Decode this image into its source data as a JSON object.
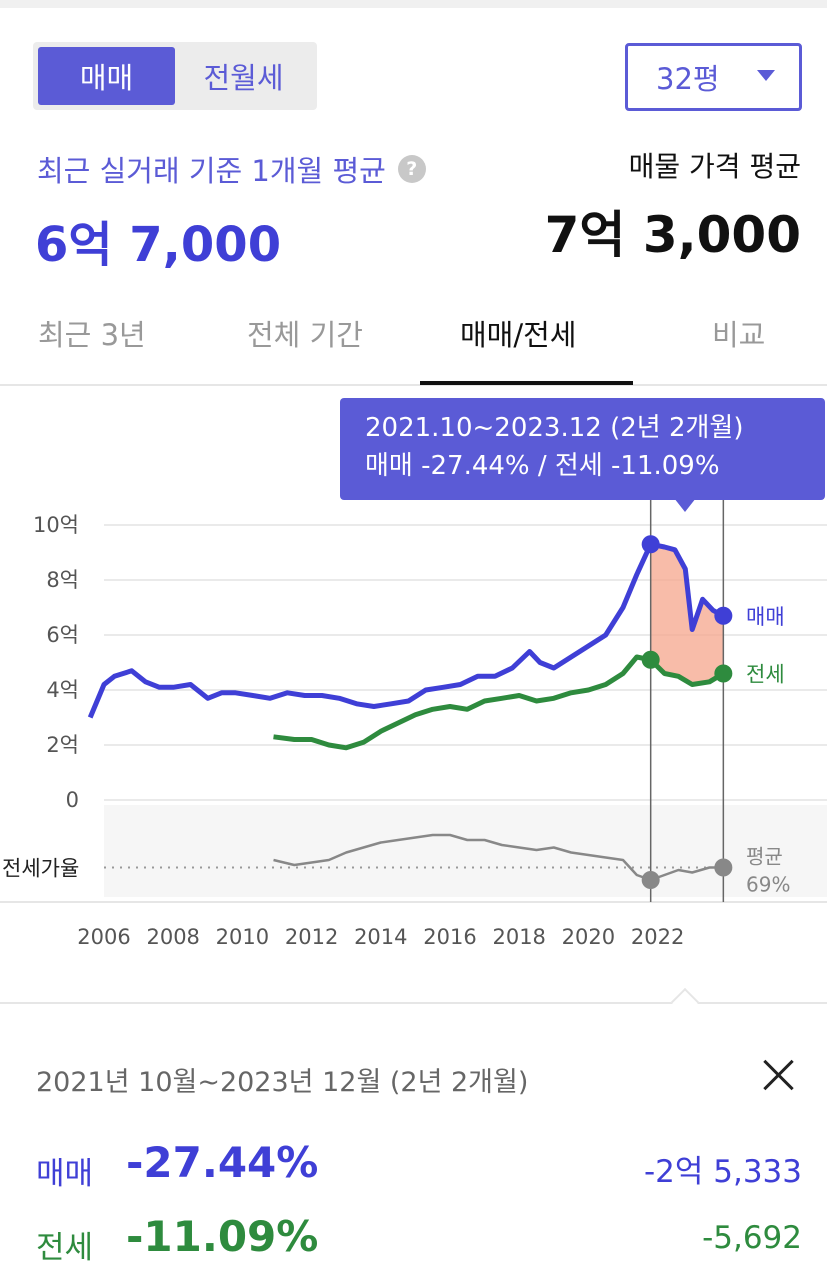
{
  "top_toggle": {
    "options": [
      "매매",
      "전월세"
    ],
    "selected": "매매"
  },
  "size_select": {
    "value": "32평"
  },
  "recent_avg": {
    "label": "최근 실거래 기준 1개월 평균",
    "help_icon": "question-circle-icon",
    "value": "6억 7,000"
  },
  "listing_avg": {
    "label": "매물 가격 평균",
    "value": "7억 3,000"
  },
  "tabs": {
    "items": [
      "최근 3년",
      "전체 기간",
      "매매/전세",
      "비교"
    ],
    "active": "매매/전세"
  },
  "tooltip": {
    "period": "2021.10~2023.12 (2년 2개월)",
    "summary": "매매 -27.44%  /  전세 -11.09%"
  },
  "chart_data": {
    "type": "line",
    "x_ticks": [
      "2006",
      "2008",
      "2010",
      "2012",
      "2014",
      "2016",
      "2018",
      "2020",
      "2022"
    ],
    "y_ticks": [
      "10억",
      "8억",
      "6억",
      "4억",
      "2억",
      "0"
    ],
    "ylim": [
      0,
      10
    ],
    "series": [
      {
        "name": "매매",
        "color": "#3f3fd6",
        "points": [
          [
            2005.6,
            3.0
          ],
          [
            2005.8,
            3.6
          ],
          [
            2006.0,
            4.2
          ],
          [
            2006.3,
            4.5
          ],
          [
            2006.8,
            4.7
          ],
          [
            2007.2,
            4.3
          ],
          [
            2007.6,
            4.1
          ],
          [
            2008.0,
            4.1
          ],
          [
            2008.5,
            4.2
          ],
          [
            2009.0,
            3.7
          ],
          [
            2009.4,
            3.9
          ],
          [
            2009.8,
            3.9
          ],
          [
            2010.3,
            3.8
          ],
          [
            2010.8,
            3.7
          ],
          [
            2011.3,
            3.9
          ],
          [
            2011.8,
            3.8
          ],
          [
            2012.3,
            3.8
          ],
          [
            2012.8,
            3.7
          ],
          [
            2013.3,
            3.5
          ],
          [
            2013.8,
            3.4
          ],
          [
            2014.3,
            3.5
          ],
          [
            2014.8,
            3.6
          ],
          [
            2015.3,
            4.0
          ],
          [
            2015.8,
            4.1
          ],
          [
            2016.3,
            4.2
          ],
          [
            2016.8,
            4.5
          ],
          [
            2017.3,
            4.5
          ],
          [
            2017.8,
            4.8
          ],
          [
            2018.3,
            5.4
          ],
          [
            2018.6,
            5.0
          ],
          [
            2019.0,
            4.8
          ],
          [
            2019.5,
            5.2
          ],
          [
            2020.0,
            5.6
          ],
          [
            2020.5,
            6.0
          ],
          [
            2021.0,
            7.0
          ],
          [
            2021.4,
            8.2
          ],
          [
            2021.8,
            9.3
          ],
          [
            2022.2,
            9.2
          ],
          [
            2022.5,
            9.1
          ],
          [
            2022.8,
            8.4
          ],
          [
            2023.0,
            6.2
          ],
          [
            2023.3,
            7.3
          ],
          [
            2023.6,
            6.9
          ],
          [
            2023.9,
            6.7
          ]
        ]
      },
      {
        "name": "전세",
        "color": "#2e8b3e",
        "points": [
          [
            2010.9,
            2.3
          ],
          [
            2011.5,
            2.2
          ],
          [
            2012.0,
            2.2
          ],
          [
            2012.5,
            2.0
          ],
          [
            2013.0,
            1.9
          ],
          [
            2013.5,
            2.1
          ],
          [
            2014.0,
            2.5
          ],
          [
            2014.5,
            2.8
          ],
          [
            2015.0,
            3.1
          ],
          [
            2015.5,
            3.3
          ],
          [
            2016.0,
            3.4
          ],
          [
            2016.5,
            3.3
          ],
          [
            2017.0,
            3.6
          ],
          [
            2017.5,
            3.7
          ],
          [
            2018.0,
            3.8
          ],
          [
            2018.5,
            3.6
          ],
          [
            2019.0,
            3.7
          ],
          [
            2019.5,
            3.9
          ],
          [
            2020.0,
            4.0
          ],
          [
            2020.5,
            4.2
          ],
          [
            2021.0,
            4.6
          ],
          [
            2021.4,
            5.2
          ],
          [
            2021.8,
            5.1
          ],
          [
            2022.2,
            4.6
          ],
          [
            2022.6,
            4.5
          ],
          [
            2023.0,
            4.2
          ],
          [
            2023.5,
            4.3
          ],
          [
            2023.9,
            4.6
          ]
        ]
      },
      {
        "name": "평균",
        "color": "#888888",
        "points": [
          [
            2010.9,
            72
          ],
          [
            2011.5,
            70
          ],
          [
            2012.0,
            71
          ],
          [
            2012.5,
            72
          ],
          [
            2013.0,
            75
          ],
          [
            2013.5,
            77
          ],
          [
            2014.0,
            79
          ],
          [
            2014.5,
            80
          ],
          [
            2015.0,
            81
          ],
          [
            2015.5,
            82
          ],
          [
            2016.0,
            82
          ],
          [
            2016.5,
            80
          ],
          [
            2017.0,
            80
          ],
          [
            2017.5,
            78
          ],
          [
            2018.0,
            77
          ],
          [
            2018.5,
            76
          ],
          [
            2019.0,
            77
          ],
          [
            2019.5,
            75
          ],
          [
            2020.0,
            74
          ],
          [
            2020.5,
            73
          ],
          [
            2021.0,
            72
          ],
          [
            2021.4,
            66
          ],
          [
            2021.8,
            64
          ],
          [
            2022.2,
            66
          ],
          [
            2022.6,
            68
          ],
          [
            2023.0,
            67
          ],
          [
            2023.5,
            69
          ],
          [
            2023.9,
            69
          ]
        ]
      }
    ],
    "ratio_label": "전세가율",
    "ratio_ylim": [
      60,
      88
    ],
    "end_labels": {
      "sale": "매매",
      "jeonse": "전세",
      "ratio": "평균",
      "ratio_value": "69%"
    },
    "selection": {
      "start": 2021.8,
      "end": 2023.9,
      "fill": "#f5a58c"
    }
  },
  "detail_panel": {
    "period": "2021년 10월~2023년 12월 (2년 2개월)",
    "rows": [
      {
        "name": "매매",
        "pct": "-27.44%",
        "diff": "-2억 5,333"
      },
      {
        "name": "전세",
        "pct": "-11.09%",
        "diff": "-5,692"
      }
    ]
  }
}
